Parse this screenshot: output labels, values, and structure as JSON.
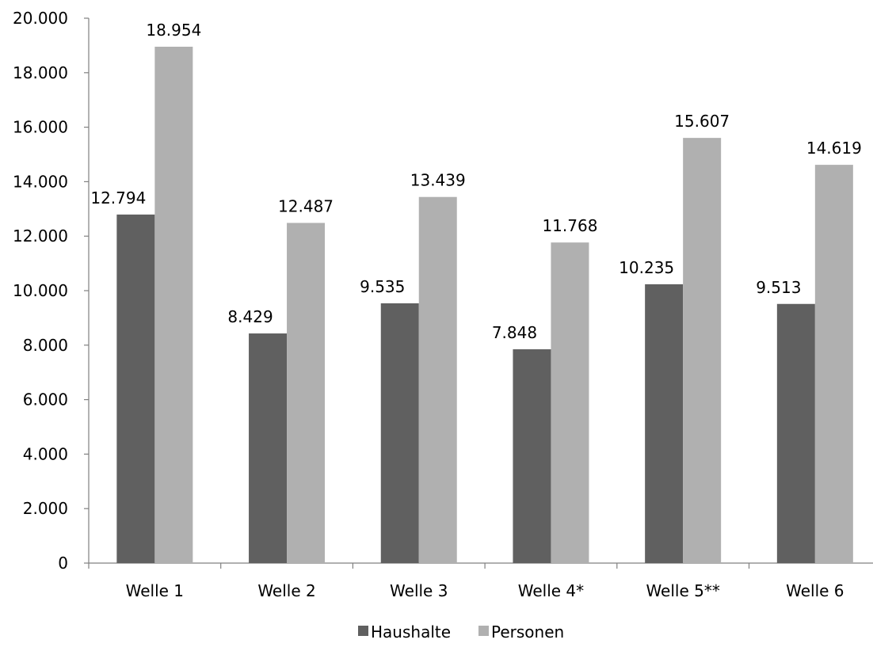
{
  "chart_data": {
    "type": "bar",
    "title": "",
    "xlabel": "",
    "ylabel": "",
    "categories": [
      "Welle 1",
      "Welle 2",
      "Welle 3",
      "Welle 4*",
      "Welle 5**",
      "Welle 6"
    ],
    "series": [
      {
        "name": "Haushalte",
        "color": "#606060",
        "values": [
          12794,
          8429,
          9535,
          7848,
          10235,
          9513
        ],
        "labels": [
          "12.794",
          "8.429",
          "9.535",
          "7.848",
          "10.235",
          "9.513"
        ]
      },
      {
        "name": "Personen",
        "color": "#b0b0b0",
        "values": [
          18954,
          12487,
          13439,
          11768,
          15607,
          14619
        ],
        "labels": [
          "18.954",
          "12.487",
          "13.439",
          "11.768",
          "15.607",
          "14.619"
        ]
      }
    ],
    "ylim": [
      0,
      20000
    ],
    "yticks": [
      0,
      2000,
      4000,
      6000,
      8000,
      10000,
      12000,
      14000,
      16000,
      18000,
      20000
    ],
    "ytick_labels": [
      "0",
      "2.000",
      "4.000",
      "6.000",
      "8.000",
      "10.000",
      "12.000",
      "14.000",
      "16.000",
      "18.000",
      "20.000"
    ],
    "grid": false,
    "legend_position": "bottom"
  }
}
